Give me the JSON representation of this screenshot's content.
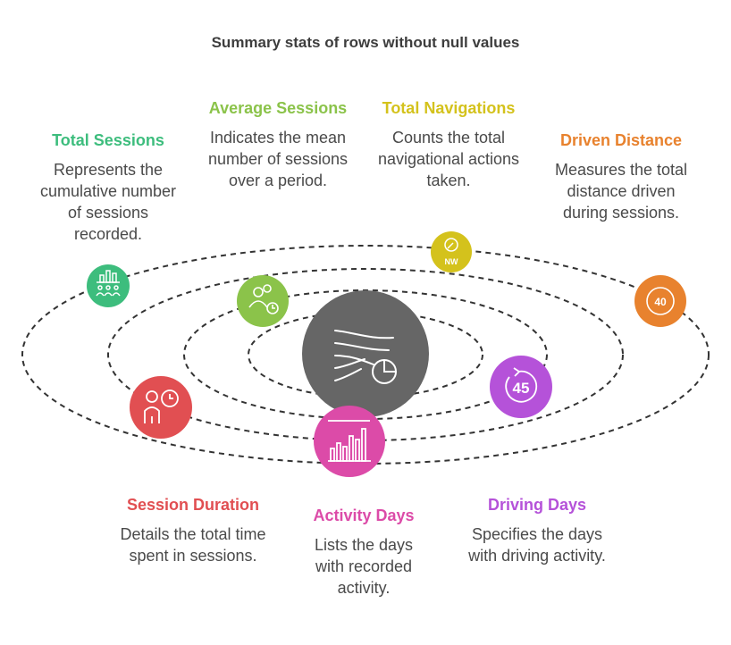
{
  "title": "Summary stats of rows without null values",
  "items": [
    {
      "id": "total-sessions",
      "label": "Total Sessions",
      "description": "Represents the cumulative number of sessions recorded.",
      "color": "#3dbd7d",
      "icon": "bar-chart-people-icon"
    },
    {
      "id": "average-sessions",
      "label": "Average Sessions",
      "description": "Indicates the mean number of sessions over a period.",
      "color": "#8bc34a",
      "icon": "users-clock-icon"
    },
    {
      "id": "total-navigations",
      "label": "Total Navigations",
      "description": "Counts the total navigational actions taken.",
      "color": "#d4c21c",
      "icon": "compass-icon",
      "icon_text": "NW"
    },
    {
      "id": "driven-distance",
      "label": "Driven Distance",
      "description": "Measures the total distance driven during sessions.",
      "color": "#e8822e",
      "icon": "speed-sign-icon",
      "icon_text": "40"
    },
    {
      "id": "session-duration",
      "label": "Session Duration",
      "description": "Details the total time spent in sessions.",
      "color": "#e14f52",
      "icon": "person-clock-icon"
    },
    {
      "id": "activity-days",
      "label": "Activity Days",
      "description": "Lists the days with recorded activity.",
      "color": "#dc4ba8",
      "icon": "bar-chart-icon"
    },
    {
      "id": "driving-days",
      "label": "Driving Days",
      "description": "Specifies the days with driving activity.",
      "color": "#b552d9",
      "icon": "countdown-icon",
      "icon_text": "45"
    }
  ],
  "center": {
    "color": "#666666",
    "icon": "flow-chart-icon"
  }
}
